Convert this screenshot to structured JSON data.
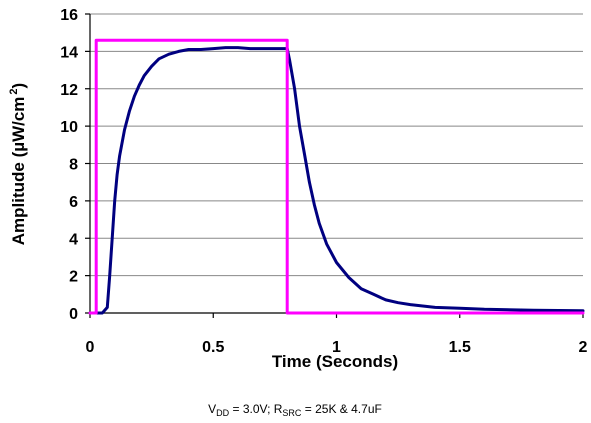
{
  "chart_data": {
    "type": "line",
    "title": "",
    "xlabel": "Time (Seconds)",
    "ylabel_main": "Amplitude (µW/cm",
    "ylabel_sup": "2",
    "ylabel_close": ")",
    "xlim": [
      0,
      2
    ],
    "ylim": [
      0,
      16
    ],
    "xticks": [
      0,
      0.5,
      1,
      1.5,
      2
    ],
    "xtick_labels": [
      "0",
      "0.5",
      "1",
      "1.5",
      "2"
    ],
    "yticks": [
      0,
      2,
      4,
      6,
      8,
      10,
      12,
      14,
      16
    ],
    "ytick_labels": [
      "0",
      "2",
      "4",
      "6",
      "8",
      "10",
      "12",
      "14",
      "16"
    ],
    "grid": "horizontal",
    "legend": "none",
    "series": [
      {
        "color": "#000080",
        "points": [
          [
            0.0,
            0.0
          ],
          [
            0.05,
            0.0
          ],
          [
            0.07,
            0.3
          ],
          [
            0.08,
            2.0
          ],
          [
            0.09,
            4.0
          ],
          [
            0.1,
            6.0
          ],
          [
            0.11,
            7.4
          ],
          [
            0.12,
            8.4
          ],
          [
            0.14,
            9.8
          ],
          [
            0.16,
            10.8
          ],
          [
            0.18,
            11.6
          ],
          [
            0.2,
            12.2
          ],
          [
            0.22,
            12.7
          ],
          [
            0.25,
            13.2
          ],
          [
            0.28,
            13.6
          ],
          [
            0.32,
            13.85
          ],
          [
            0.36,
            14.0
          ],
          [
            0.4,
            14.1
          ],
          [
            0.45,
            14.1
          ],
          [
            0.5,
            14.15
          ],
          [
            0.55,
            14.2
          ],
          [
            0.6,
            14.2
          ],
          [
            0.65,
            14.15
          ],
          [
            0.7,
            14.15
          ],
          [
            0.8,
            14.15
          ],
          [
            0.81,
            13.5
          ],
          [
            0.83,
            12.0
          ],
          [
            0.85,
            10.0
          ],
          [
            0.87,
            8.5
          ],
          [
            0.89,
            7.0
          ],
          [
            0.91,
            5.8
          ],
          [
            0.93,
            4.8
          ],
          [
            0.96,
            3.7
          ],
          [
            1.0,
            2.7
          ],
          [
            1.05,
            1.9
          ],
          [
            1.1,
            1.3
          ],
          [
            1.15,
            1.0
          ],
          [
            1.2,
            0.7
          ],
          [
            1.25,
            0.55
          ],
          [
            1.3,
            0.45
          ],
          [
            1.4,
            0.3
          ],
          [
            1.5,
            0.25
          ],
          [
            1.6,
            0.2
          ],
          [
            1.8,
            0.15
          ],
          [
            2.0,
            0.12
          ]
        ]
      },
      {
        "color": "#ff00ff",
        "points": [
          [
            0.0,
            0.0
          ],
          [
            0.025,
            0.0
          ],
          [
            0.025,
            14.6
          ],
          [
            0.8,
            14.6
          ],
          [
            0.8,
            0.0
          ],
          [
            2.0,
            0.0
          ]
        ]
      }
    ],
    "caption": {
      "v_main": "V",
      "v_sub": "DD",
      "v_rest": " = 3.0V; R",
      "r_sub": "SRC",
      "r_rest": " = 25K & 4.7uF"
    }
  }
}
